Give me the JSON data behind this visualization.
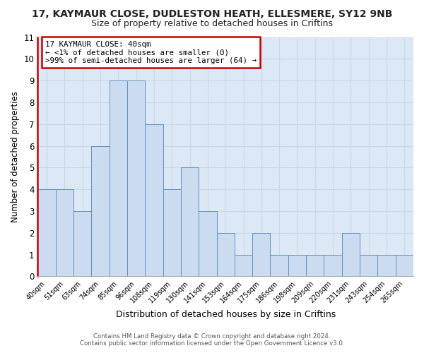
{
  "title_line1": "17, KAYMAUR CLOSE, DUDLESTON HEATH, ELLESMERE, SY12 9NB",
  "title_line2": "Size of property relative to detached houses in Criftins",
  "xlabel": "Distribution of detached houses by size in Criftins",
  "ylabel": "Number of detached properties",
  "categories": [
    "40sqm",
    "51sqm",
    "63sqm",
    "74sqm",
    "85sqm",
    "96sqm",
    "108sqm",
    "119sqm",
    "130sqm",
    "141sqm",
    "153sqm",
    "164sqm",
    "175sqm",
    "186sqm",
    "198sqm",
    "209sqm",
    "220sqm",
    "231sqm",
    "243sqm",
    "254sqm",
    "265sqm"
  ],
  "values": [
    4,
    4,
    3,
    6,
    9,
    9,
    7,
    4,
    5,
    3,
    2,
    1,
    2,
    1,
    1,
    1,
    1,
    2,
    1,
    1,
    1
  ],
  "bar_color": "#ccdcf0",
  "bar_edge_color": "#6090c0",
  "chart_bg_color": "#dce8f5",
  "figure_bg_color": "#ffffff",
  "ylim": [
    0,
    11
  ],
  "yticks": [
    0,
    1,
    2,
    3,
    4,
    5,
    6,
    7,
    8,
    9,
    10,
    11
  ],
  "annotation_title": "17 KAYMAUR CLOSE: 40sqm",
  "annotation_line1": "← <1% of detached houses are smaller (0)",
  "annotation_line2": ">99% of semi-detached houses are larger (64) →",
  "annotation_box_facecolor": "#ffffff",
  "annotation_box_edgecolor": "#cc0000",
  "left_spine_color": "#cc0000",
  "grid_color": "#c8d8e8",
  "footer_line1": "Contains HM Land Registry data © Crown copyright and database right 2024.",
  "footer_line2": "Contains public sector information licensed under the Open Government Licence v3.0."
}
